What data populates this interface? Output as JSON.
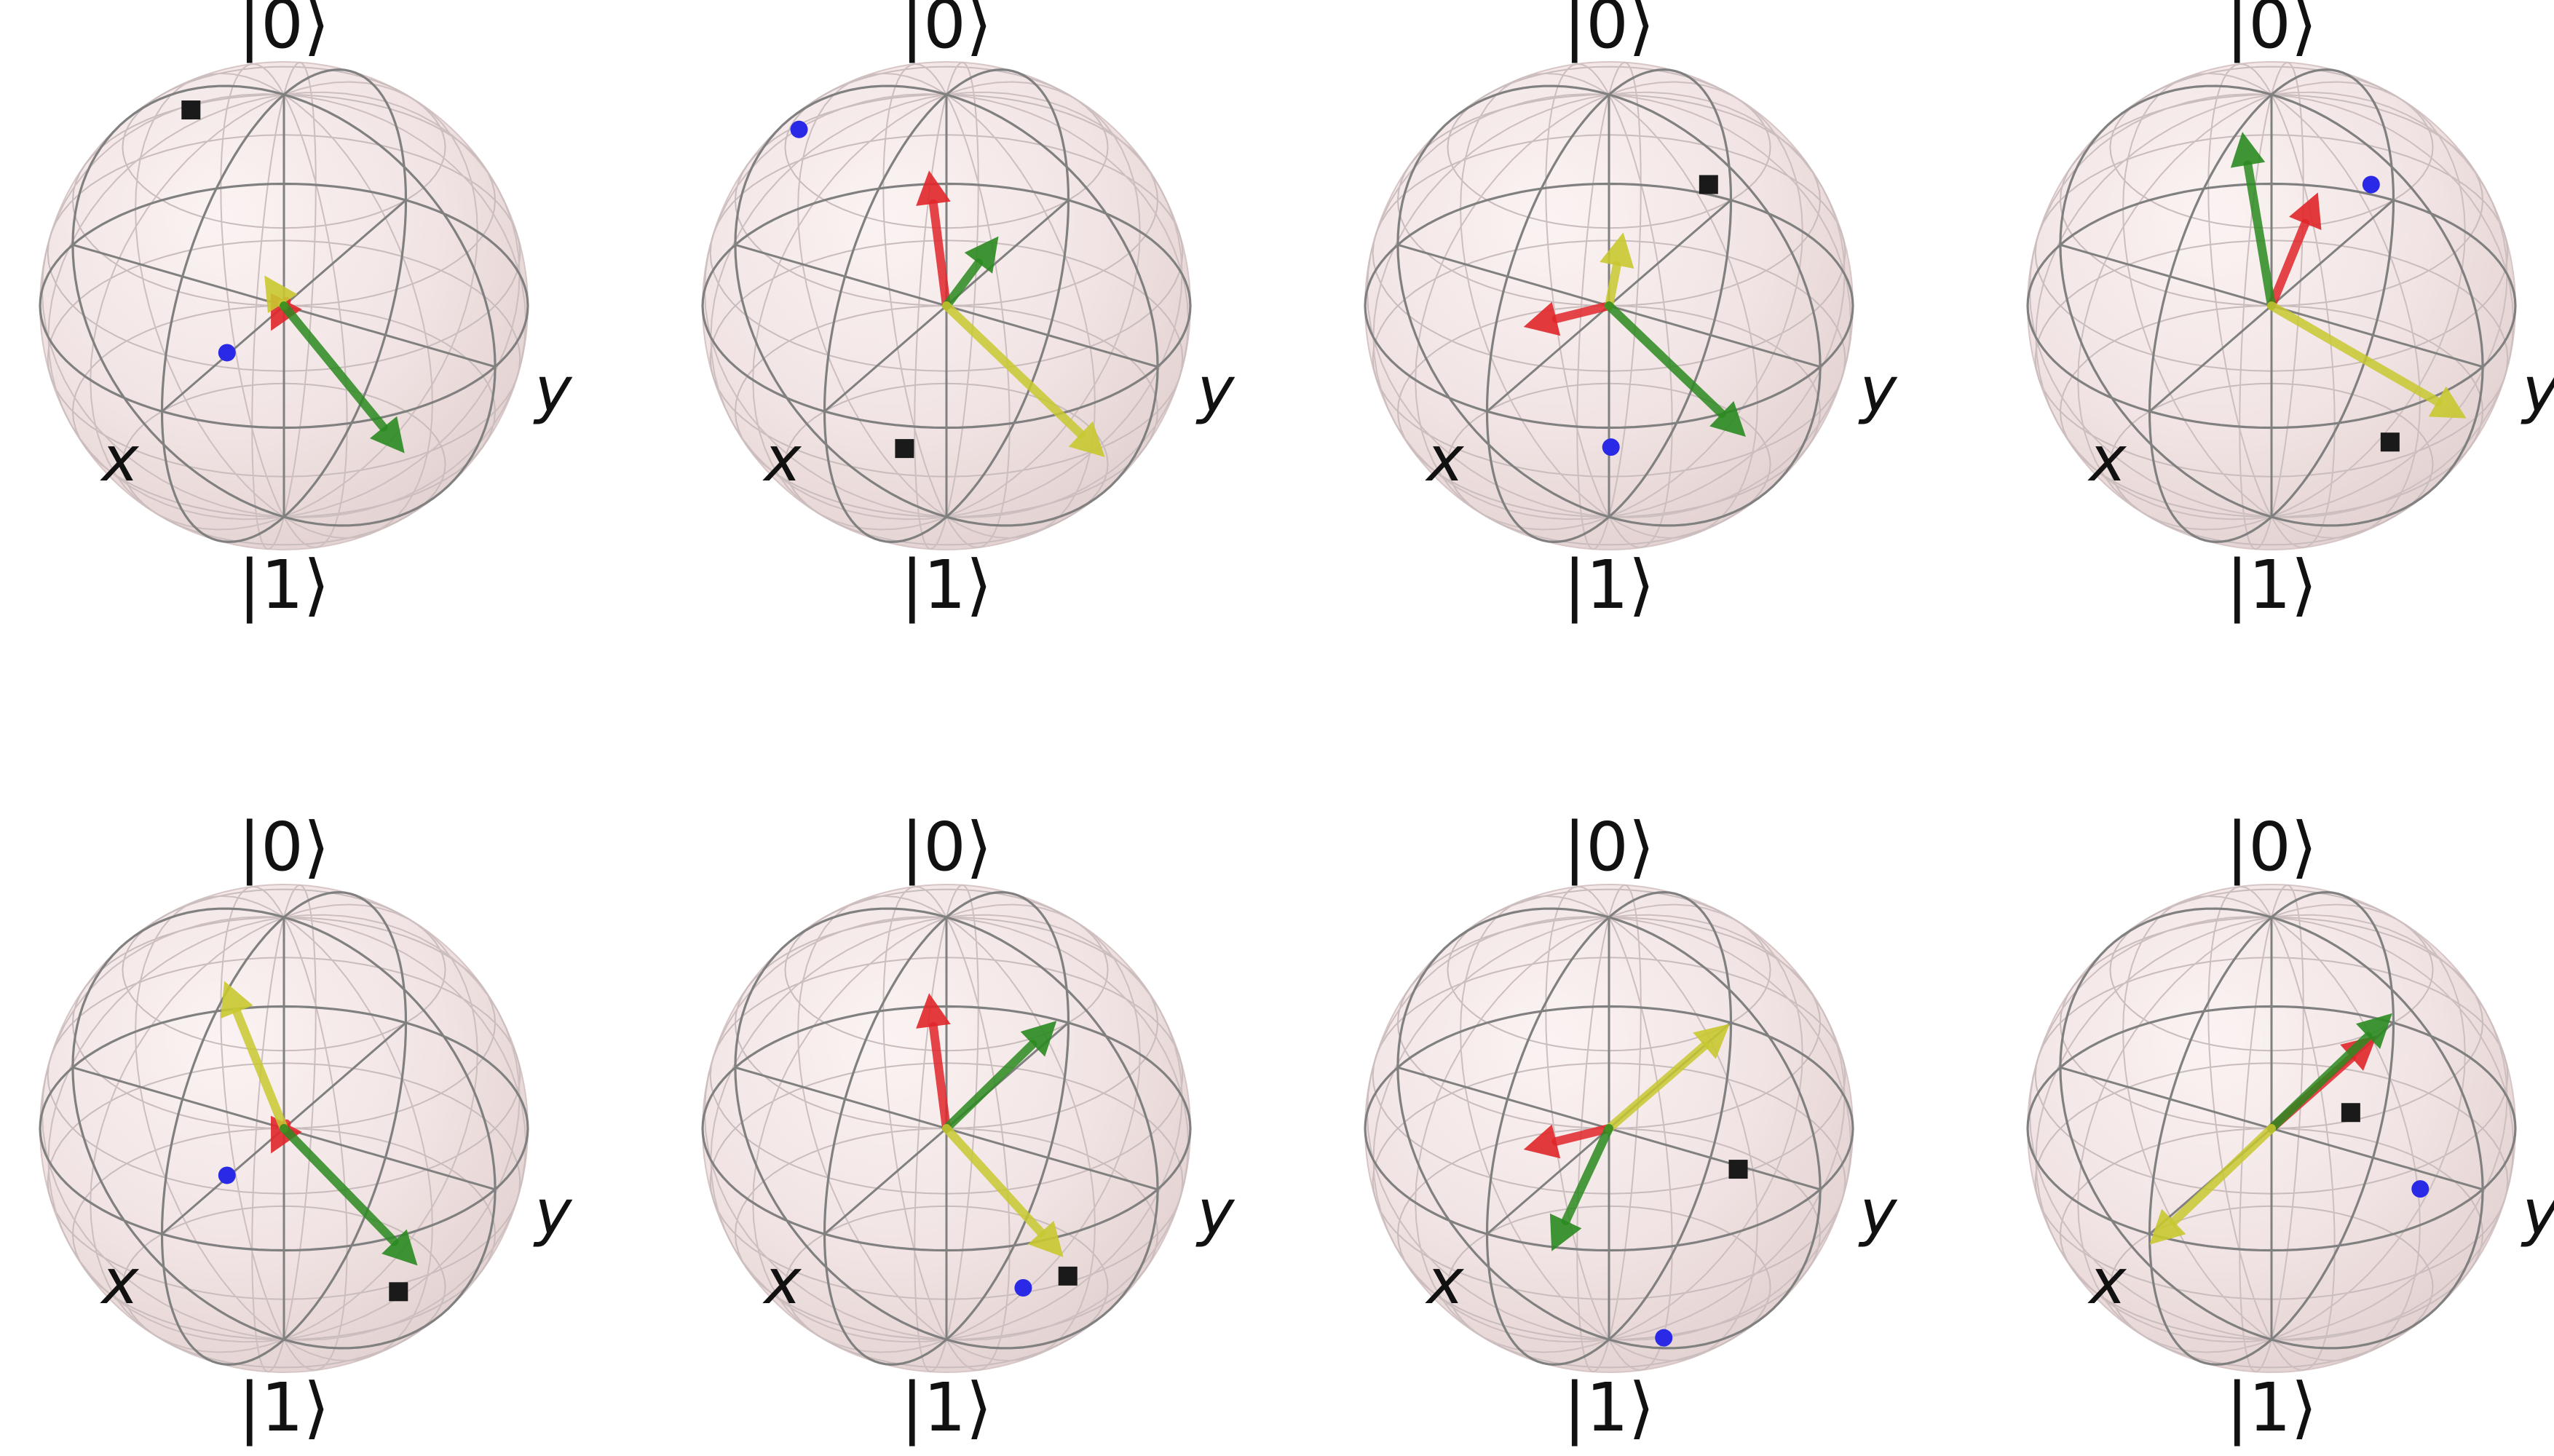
{
  "colors": {
    "sphere": "#f4e5e5",
    "wire": "#808080",
    "red": "#e0262a",
    "green": "#2a8a20",
    "yellow": "#c8c830",
    "blue_point": "#2a2ae6",
    "square_point": "#1a1a1a"
  },
  "labels": {
    "zero": "|0⟩",
    "one": "|1⟩",
    "x": "x",
    "y": "y"
  },
  "spheres": [
    {
      "vectors": [
        {
          "color": "red",
          "x": 0.1,
          "y": -0.28,
          "z": 0.05
        },
        {
          "color": "yellow",
          "x": -0.15,
          "y": 0.1,
          "z": 0.05
        },
        {
          "color": "green",
          "x": 0.6,
          "y": -0.05,
          "z": -0.5
        }
      ],
      "points": [
        {
          "shape": "circle",
          "x": 0.25,
          "y": -0.9,
          "z": 0.3
        },
        {
          "shape": "square",
          "x": -0.7,
          "y": 0.45,
          "z": 0.5
        }
      ]
    },
    {
      "vectors": [
        {
          "color": "red",
          "x": -0.4,
          "y": 0.55,
          "z": 0.25
        },
        {
          "color": "green",
          "x": -0.1,
          "y": 0.6,
          "z": 0.0
        },
        {
          "color": "yellow",
          "x": 0.75,
          "y": 0.0,
          "z": -0.5
        }
      ],
      "points": [
        {
          "shape": "circle",
          "x": -0.9,
          "y": 0.35,
          "z": 0.4
        },
        {
          "shape": "square",
          "x": 0.35,
          "y": -0.95,
          "z": -0.1
        }
      ]
    },
    {
      "vectors": [
        {
          "color": "red",
          "x": 0.0,
          "y": -0.7,
          "z": 0.25
        },
        {
          "color": "yellow",
          "x": -0.25,
          "y": 0.55,
          "z": 0.0
        },
        {
          "color": "green",
          "x": 0.85,
          "y": -0.35,
          "z": -0.2
        }
      ],
      "points": [
        {
          "shape": "circle",
          "x": 0.5,
          "y": -0.85,
          "z": -0.1
        },
        {
          "shape": "square",
          "x": -0.1,
          "y": 0.99,
          "z": 0.05
        }
      ]
    },
    {
      "vectors": [
        {
          "color": "red",
          "x": -0.3,
          "y": 0.9,
          "z": 0.0
        },
        {
          "color": "green",
          "x": -0.6,
          "y": 0.8,
          "z": 0.25
        },
        {
          "color": "yellow",
          "x": 0.98,
          "y": -0.1,
          "z": -0.2
        }
      ],
      "points": [
        {
          "shape": "circle",
          "x": -0.1,
          "y": 0.99,
          "z": 0.05
        },
        {
          "shape": "square",
          "x": 0.85,
          "y": -0.5,
          "z": -0.15
        }
      ]
    },
    {
      "vectors": [
        {
          "color": "red",
          "x": 0.1,
          "y": -0.28,
          "z": 0.05
        },
        {
          "color": "yellow",
          "x": -0.6,
          "y": 0.55,
          "z": 0.25
        },
        {
          "color": "green",
          "x": 0.95,
          "y": -0.55,
          "z": -0.1
        }
      ],
      "points": [
        {
          "shape": "circle",
          "x": 0.25,
          "y": -0.9,
          "z": 0.3
        },
        {
          "shape": "square",
          "x": 0.6,
          "y": -0.1,
          "z": -0.55
        }
      ]
    },
    {
      "vectors": [
        {
          "color": "red",
          "x": -0.4,
          "y": 0.55,
          "z": 0.25
        },
        {
          "color": "green",
          "x": -0.05,
          "y": 0.99,
          "z": 0.0
        },
        {
          "color": "yellow",
          "x": 0.9,
          "y": -0.6,
          "z": -0.05
        }
      ],
      "points": [
        {
          "shape": "circle",
          "x": 0.45,
          "y": -0.15,
          "z": -0.55
        },
        {
          "shape": "square",
          "x": 0.95,
          "y": -0.65,
          "z": -0.1
        }
      ]
    },
    {
      "vectors": [
        {
          "color": "red",
          "x": 0.0,
          "y": -0.7,
          "z": 0.25
        },
        {
          "color": "yellow",
          "x": 0.0,
          "y": 0.99,
          "z": 0.0
        },
        {
          "color": "green",
          "x": 0.3,
          "y": -0.99,
          "z": 0.0
        }
      ],
      "points": [
        {
          "shape": "circle",
          "x": 0.75,
          "y": -0.85,
          "z": -0.35
        },
        {
          "shape": "square",
          "x": 0.15,
          "y": 0.8,
          "z": -0.55
        }
      ]
    },
    {
      "vectors": [
        {
          "color": "red",
          "x": -0.05,
          "y": 0.95,
          "z": -0.05
        },
        {
          "color": "green",
          "x": 0.0,
          "y": 0.99,
          "z": 0.05
        },
        {
          "color": "yellow",
          "x": 0.0,
          "y": -1.0,
          "z": -0.05
        }
      ],
      "points": [
        {
          "shape": "circle",
          "x": 0.3,
          "y": 0.7,
          "z": -0.55
        },
        {
          "shape": "square",
          "x": 0.0,
          "y": 0.65,
          "z": -0.25
        }
      ]
    }
  ]
}
